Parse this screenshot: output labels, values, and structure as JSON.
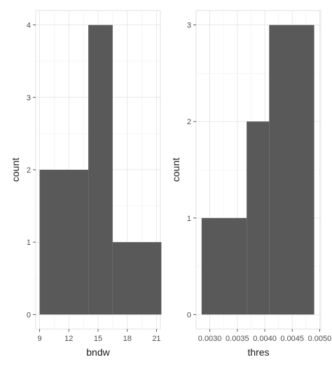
{
  "chart_data": [
    {
      "type": "histogram",
      "xlabel": "bndw",
      "ylabel": "count",
      "x_ticks": [
        9,
        12,
        15,
        18,
        21
      ],
      "y_ticks": [
        0,
        1,
        2,
        3,
        4
      ],
      "xlim": [
        8.6,
        21.4
      ],
      "ylim": [
        -0.2,
        4.2
      ],
      "bins": [
        {
          "x0": 9,
          "x1": 14,
          "count": 2
        },
        {
          "x0": 14,
          "x1": 16.5,
          "count": 4
        },
        {
          "x0": 16.5,
          "x1": 21.5,
          "count": 1
        }
      ],
      "bar_color": "#595959",
      "grid": true
    },
    {
      "type": "histogram",
      "xlabel": "thres",
      "ylabel": "count",
      "x_ticks": [
        0.003,
        0.0035,
        0.004,
        0.0045,
        0.005
      ],
      "x_tick_labels": [
        "0.0030",
        "0.0035",
        "0.0040",
        "0.0045",
        "0.0050"
      ],
      "y_ticks": [
        0,
        1,
        2,
        3
      ],
      "xlim": [
        0.00275,
        0.00502
      ],
      "ylim": [
        -0.15,
        3.15
      ],
      "bins": [
        {
          "x0": 0.00285,
          "x1": 0.00367,
          "count": 1
        },
        {
          "x0": 0.00367,
          "x1": 0.00408,
          "count": 2
        },
        {
          "x0": 0.00408,
          "x1": 0.0049,
          "count": 3
        }
      ],
      "bar_color": "#595959",
      "grid": true
    }
  ]
}
